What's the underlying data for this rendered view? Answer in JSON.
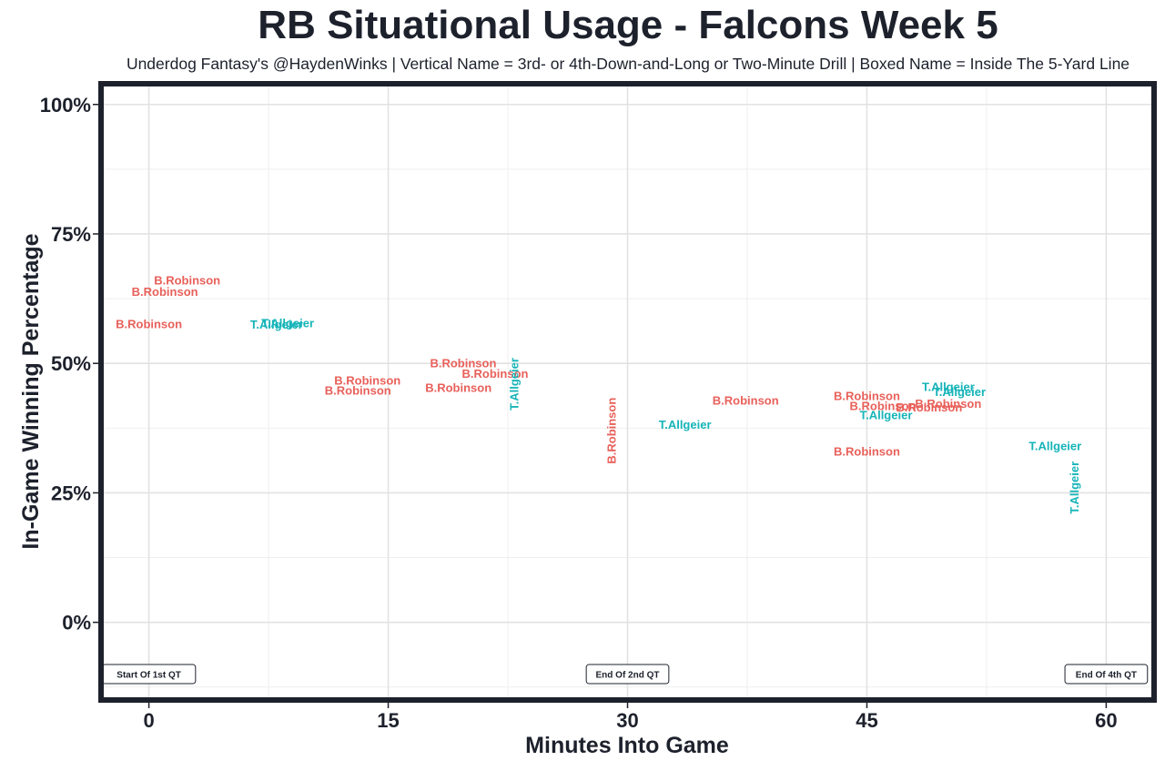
{
  "chart_data": {
    "type": "scatter",
    "title": "RB Situational Usage - Falcons Week 5",
    "subtitle": "Underdog Fantasy's @HaydenWinks | Vertical Name = 3rd- or 4th-Down-and-Long or Two-Minute Drill | Boxed Name = Inside The 5-Yard Line",
    "xlabel": "Minutes Into Game",
    "ylabel": "In-Game Winning Percentage",
    "xlim": [
      -3,
      63
    ],
    "ylim": [
      -0.15,
      1.04
    ],
    "x_ticks": [
      0,
      15,
      30,
      45,
      60
    ],
    "x_tick_labels": [
      "0",
      "15",
      "30",
      "45",
      "60"
    ],
    "y_ticks": [
      0,
      0.25,
      0.5,
      0.75,
      1.0
    ],
    "y_tick_labels": [
      "0%",
      "25%",
      "50%",
      "75%",
      "100%"
    ],
    "grid": true,
    "colors": {
      "B.Robinson": "#e8605a",
      "T.Allgeier": "#15b4b8"
    },
    "annotations": [
      {
        "x": 0,
        "y": -0.1,
        "text": "Start Of 1st QT"
      },
      {
        "x": 30,
        "y": -0.1,
        "text": "End Of 2nd QT"
      },
      {
        "x": 60,
        "y": -0.1,
        "text": "End Of 4th QT"
      }
    ],
    "points": [
      {
        "player": "B.Robinson",
        "x": 2.4,
        "y": 0.66,
        "vertical": false
      },
      {
        "player": "B.Robinson",
        "x": 1.0,
        "y": 0.638,
        "vertical": false
      },
      {
        "player": "B.Robinson",
        "x": 0.0,
        "y": 0.576,
        "vertical": false
      },
      {
        "player": "T.Allgeier",
        "x": 8.7,
        "y": 0.578,
        "vertical": false
      },
      {
        "player": "T.Allgeier",
        "x": 8.0,
        "y": 0.575,
        "vertical": false
      },
      {
        "player": "B.Robinson",
        "x": 13.7,
        "y": 0.467,
        "vertical": false
      },
      {
        "player": "B.Robinson",
        "x": 13.1,
        "y": 0.448,
        "vertical": false
      },
      {
        "player": "B.Robinson",
        "x": 19.7,
        "y": 0.5,
        "vertical": false
      },
      {
        "player": "B.Robinson",
        "x": 21.7,
        "y": 0.48,
        "vertical": false
      },
      {
        "player": "B.Robinson",
        "x": 19.4,
        "y": 0.453,
        "vertical": false
      },
      {
        "player": "T.Allgeier",
        "x": 22.9,
        "y": 0.46,
        "vertical": true
      },
      {
        "player": "B.Robinson",
        "x": 29.0,
        "y": 0.37,
        "vertical": true
      },
      {
        "player": "T.Allgeier",
        "x": 33.6,
        "y": 0.382,
        "vertical": false
      },
      {
        "player": "B.Robinson",
        "x": 37.4,
        "y": 0.428,
        "vertical": false
      },
      {
        "player": "B.Robinson",
        "x": 45.0,
        "y": 0.437,
        "vertical": false
      },
      {
        "player": "B.Robinson",
        "x": 46.0,
        "y": 0.418,
        "vertical": false
      },
      {
        "player": "T.Allgeier",
        "x": 46.2,
        "y": 0.4,
        "vertical": false
      },
      {
        "player": "B.Robinson",
        "x": 50.1,
        "y": 0.422,
        "vertical": false
      },
      {
        "player": "B.Robinson",
        "x": 48.9,
        "y": 0.415,
        "vertical": false
      },
      {
        "player": "T.Allgeier",
        "x": 50.1,
        "y": 0.455,
        "vertical": false
      },
      {
        "player": "T.Allgeier",
        "x": 50.8,
        "y": 0.445,
        "vertical": false
      },
      {
        "player": "B.Robinson",
        "x": 45.0,
        "y": 0.33,
        "vertical": false
      },
      {
        "player": "T.Allgeier",
        "x": 56.8,
        "y": 0.34,
        "vertical": false
      },
      {
        "player": "T.Allgeier",
        "x": 58.0,
        "y": 0.26,
        "vertical": true
      }
    ]
  }
}
